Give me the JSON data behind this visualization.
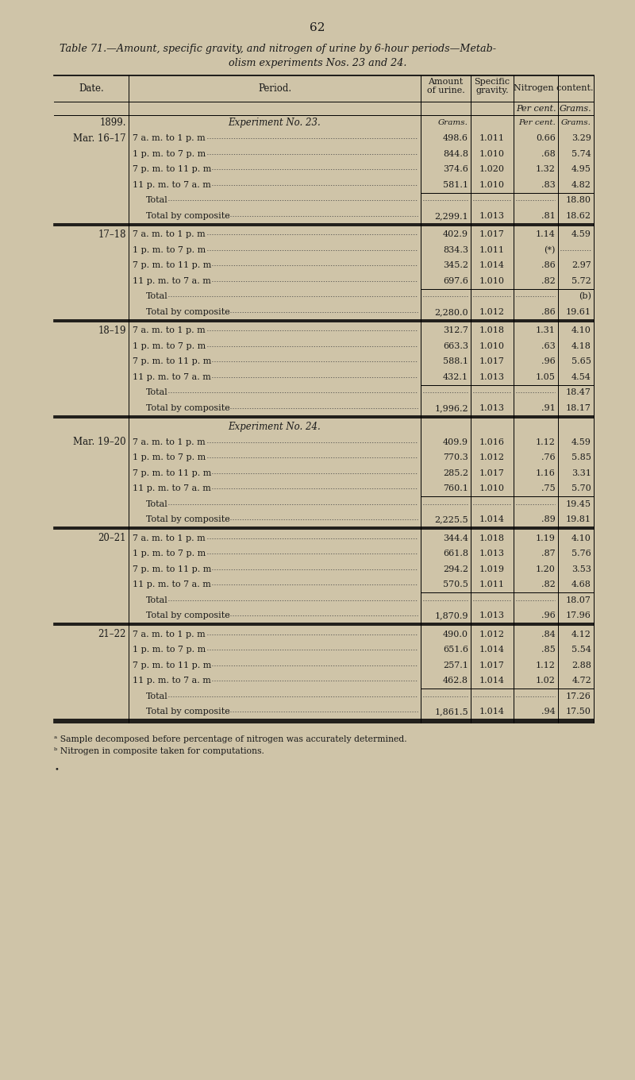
{
  "page_number": "62",
  "title_line1": "Table 71.—Amount, specific gravity, and nitrogen of urine by 6-hour periods—Metab-",
  "title_line2": "olism experiments Nos. 23 and 24.",
  "bg_color": "#cfc4a8",
  "text_color": "#1a1a1a",
  "footnote1": "ᵃ Sample decomposed before percentage of nitrogen was accurately determined.",
  "footnote2": "ᵇ Nitrogen in composite taken for computations.",
  "rows": [
    {
      "date": "1899.",
      "period": "Experiment No. 23.",
      "amount": "",
      "sp_gr": "",
      "pct_n": "Per cent.",
      "grams_n": "Grams.",
      "style": "italic_header"
    },
    {
      "date": "Mar. 16–17",
      "period": "7 a. m. to 1 p. m",
      "amount": "498.6",
      "sp_gr": "1.011",
      "pct_n": "0.66",
      "grams_n": "3.29",
      "style": "data"
    },
    {
      "date": "",
      "period": "1 p. m. to 7 p. m",
      "amount": "844.8",
      "sp_gr": "1.010",
      "pct_n": ".68",
      "grams_n": "5.74",
      "style": "data"
    },
    {
      "date": "",
      "period": "7 p. m. to 11 p. m",
      "amount": "374.6",
      "sp_gr": "1.020",
      "pct_n": "1.32",
      "grams_n": "4.95",
      "style": "data"
    },
    {
      "date": "",
      "period": "11 p. m. to 7 a. m",
      "amount": "581.1",
      "sp_gr": "1.010",
      "pct_n": ".83",
      "grams_n": "4.82",
      "style": "data"
    },
    {
      "date": "",
      "period": "Total",
      "amount": "",
      "sp_gr": "",
      "pct_n": "",
      "grams_n": "18.80",
      "style": "total"
    },
    {
      "date": "",
      "period": "Total by composite",
      "amount": "2,299.1",
      "sp_gr": "1.013",
      "pct_n": ".81",
      "grams_n": "18.62",
      "style": "composite"
    },
    {
      "date": "17–18",
      "period": "7 a. m. to 1 p. m",
      "amount": "402.9",
      "sp_gr": "1.017",
      "pct_n": "1.14",
      "grams_n": "4.59",
      "style": "data"
    },
    {
      "date": "",
      "period": "1 p. m. to 7 p. m",
      "amount": "834.3",
      "sp_gr": "1.011",
      "pct_n": "(*)",
      "grams_n": ".........",
      "style": "data"
    },
    {
      "date": "",
      "period": "7 p. m. to 11 p. m",
      "amount": "345.2",
      "sp_gr": "1.014",
      "pct_n": ".86",
      "grams_n": "2.97",
      "style": "data"
    },
    {
      "date": "",
      "period": "11 p. m. to 7 a. m",
      "amount": "697.6",
      "sp_gr": "1.010",
      "pct_n": ".82",
      "grams_n": "5.72",
      "style": "data"
    },
    {
      "date": "",
      "period": "Total",
      "amount": "",
      "sp_gr": "",
      "pct_n": "",
      "grams_n": "(b)",
      "style": "total"
    },
    {
      "date": "",
      "period": "Total by composite",
      "amount": "2,280.0",
      "sp_gr": "1.012",
      "pct_n": ".86",
      "grams_n": "19.61",
      "style": "composite"
    },
    {
      "date": "18–19",
      "period": "7 a. m. to 1 p. m",
      "amount": "312.7",
      "sp_gr": "1.018",
      "pct_n": "1.31",
      "grams_n": "4.10",
      "style": "data"
    },
    {
      "date": "",
      "period": "1 p. m. to 7 p. m",
      "amount": "663.3",
      "sp_gr": "1.010",
      "pct_n": ".63",
      "grams_n": "4.18",
      "style": "data"
    },
    {
      "date": "",
      "period": "7 p. m. to 11 p. m",
      "amount": "588.1",
      "sp_gr": "1.017",
      "pct_n": ".96",
      "grams_n": "5.65",
      "style": "data"
    },
    {
      "date": "",
      "period": "11 p. m. to 7 a. m",
      "amount": "432.1",
      "sp_gr": "1.013",
      "pct_n": "1.05",
      "grams_n": "4.54",
      "style": "data"
    },
    {
      "date": "",
      "period": "Total",
      "amount": "",
      "sp_gr": "",
      "pct_n": "",
      "grams_n": "18.47",
      "style": "total"
    },
    {
      "date": "",
      "period": "Total by composite",
      "amount": "1,996.2",
      "sp_gr": "1.013",
      "pct_n": ".91",
      "grams_n": "18.17",
      "style": "composite"
    },
    {
      "date": "",
      "period": "Experiment No. 24.",
      "amount": "",
      "sp_gr": "",
      "pct_n": "",
      "grams_n": "",
      "style": "italic_header2"
    },
    {
      "date": "Mar. 19–20",
      "period": "7 a. m. to 1 p. m",
      "amount": "409.9",
      "sp_gr": "1.016",
      "pct_n": "1.12",
      "grams_n": "4.59",
      "style": "data"
    },
    {
      "date": "",
      "period": "1 p. m. to 7 p. m",
      "amount": "770.3",
      "sp_gr": "1.012",
      "pct_n": ".76",
      "grams_n": "5.85",
      "style": "data"
    },
    {
      "date": "",
      "period": "7 p. m. to 11 p. m",
      "amount": "285.2",
      "sp_gr": "1.017",
      "pct_n": "1.16",
      "grams_n": "3.31",
      "style": "data"
    },
    {
      "date": "",
      "period": "11 p. m. to 7 a. m",
      "amount": "760.1",
      "sp_gr": "1.010",
      "pct_n": ".75",
      "grams_n": "5.70",
      "style": "data"
    },
    {
      "date": "",
      "period": "Total",
      "amount": "",
      "sp_gr": "",
      "pct_n": "",
      "grams_n": "19.45",
      "style": "total"
    },
    {
      "date": "",
      "period": "Total by composite",
      "amount": "2,225.5",
      "sp_gr": "1.014",
      "pct_n": ".89",
      "grams_n": "19.81",
      "style": "composite"
    },
    {
      "date": "20–21",
      "period": "7 a. m. to 1 p. m",
      "amount": "344.4",
      "sp_gr": "1.018",
      "pct_n": "1.19",
      "grams_n": "4.10",
      "style": "data"
    },
    {
      "date": "",
      "period": "1 p. m. to 7 p. m",
      "amount": "661.8",
      "sp_gr": "1.013",
      "pct_n": ".87",
      "grams_n": "5.76",
      "style": "data"
    },
    {
      "date": "",
      "period": "7 p. m. to 11 p. m",
      "amount": "294.2",
      "sp_gr": "1.019",
      "pct_n": "1.20",
      "grams_n": "3.53",
      "style": "data"
    },
    {
      "date": "",
      "period": "11 p. m. to 7 a. m",
      "amount": "570.5",
      "sp_gr": "1.011",
      "pct_n": ".82",
      "grams_n": "4.68",
      "style": "data"
    },
    {
      "date": "",
      "period": "Total",
      "amount": "",
      "sp_gr": "",
      "pct_n": "",
      "grams_n": "18.07",
      "style": "total"
    },
    {
      "date": "",
      "period": "Total by composite",
      "amount": "1,870.9",
      "sp_gr": "1.013",
      "pct_n": ".96",
      "grams_n": "17.96",
      "style": "composite"
    },
    {
      "date": "21–22",
      "period": "7 a. m. to 1 p. m",
      "amount": "490.0",
      "sp_gr": "1.012",
      "pct_n": ".84",
      "grams_n": "4.12",
      "style": "data"
    },
    {
      "date": "",
      "period": "1 p. m. to 7 p. m",
      "amount": "651.6",
      "sp_gr": "1.014",
      "pct_n": ".85",
      "grams_n": "5.54",
      "style": "data"
    },
    {
      "date": "",
      "period": "7 p. m. to 11 p. m",
      "amount": "257.1",
      "sp_gr": "1.017",
      "pct_n": "1.12",
      "grams_n": "2.88",
      "style": "data"
    },
    {
      "date": "",
      "period": "11 p. m. to 7 a. m",
      "amount": "462.8",
      "sp_gr": "1.014",
      "pct_n": "1.02",
      "grams_n": "4.72",
      "style": "data"
    },
    {
      "date": "",
      "period": "Total",
      "amount": "",
      "sp_gr": "",
      "pct_n": "",
      "grams_n": "17.26",
      "style": "total"
    },
    {
      "date": "",
      "period": "Total by composite",
      "amount": "1,861.5",
      "sp_gr": "1.014",
      "pct_n": ".94",
      "grams_n": "17.50",
      "style": "composite"
    }
  ]
}
